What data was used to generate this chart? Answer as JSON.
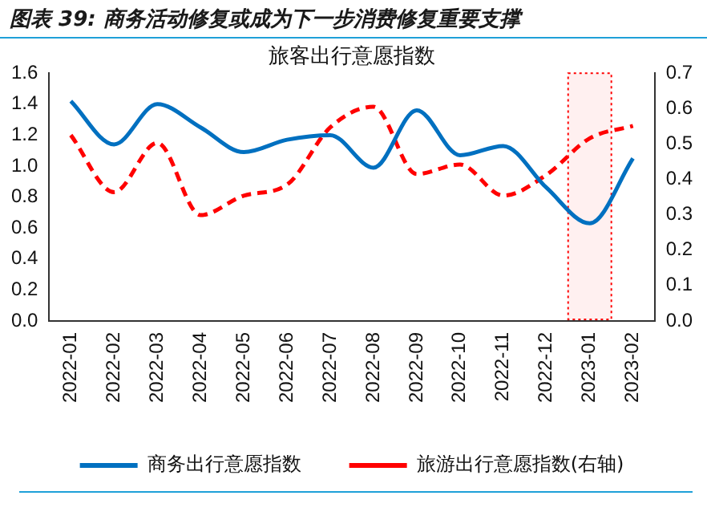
{
  "chart_data": {
    "type": "line",
    "title": "图表 39: 商务活动修复或成为下一步消费修复重要支撑",
    "subtitle": "旅客出行意愿指数",
    "categories": [
      "2022-01",
      "2022-02",
      "2022-03",
      "2022-04",
      "2022-05",
      "2022-06",
      "2022-07",
      "2022-08",
      "2022-09",
      "2022-10",
      "2022-11",
      "2022-12",
      "2023-01",
      "2023-02"
    ],
    "series": [
      {
        "name": "商务出行意愿指数",
        "color": "#0070c0",
        "line_style": "solid",
        "values": [
          1.42,
          1.14,
          1.4,
          1.25,
          1.09,
          1.17,
          1.2,
          0.99,
          1.36,
          1.07,
          1.13,
          0.86,
          0.63,
          1.05
        ]
      },
      {
        "name": "旅游出行意愿指数(右轴)",
        "color": "#ff0000",
        "line_style": "dashed",
        "axis": "y2",
        "values": [
          0.525,
          0.364,
          0.503,
          0.299,
          0.354,
          0.385,
          0.547,
          0.605,
          0.415,
          0.442,
          0.354,
          0.413,
          0.516,
          0.551
        ]
      }
    ],
    "ylim": [
      0,
      1.6
    ],
    "yticks": [
      {
        "value": 0,
        "label": "0.0"
      },
      0.2,
      0.4,
      0.6,
      0.8,
      {
        "value": 1,
        "label": "1.0"
      },
      1.2,
      1.4,
      1.6
    ],
    "y2lim": [
      0,
      0.7
    ],
    "y2ticks": [
      {
        "value": 0,
        "label": "0.0"
      },
      0.1,
      0.2,
      0.3,
      0.4,
      0.5,
      0.6,
      0.7
    ],
    "bands": [
      {
        "axis": "x",
        "from": "2023-01",
        "to": "2023-01",
        "color": "#ff0000"
      }
    ],
    "grid": false,
    "legend": "bottom",
    "marker": "none"
  }
}
